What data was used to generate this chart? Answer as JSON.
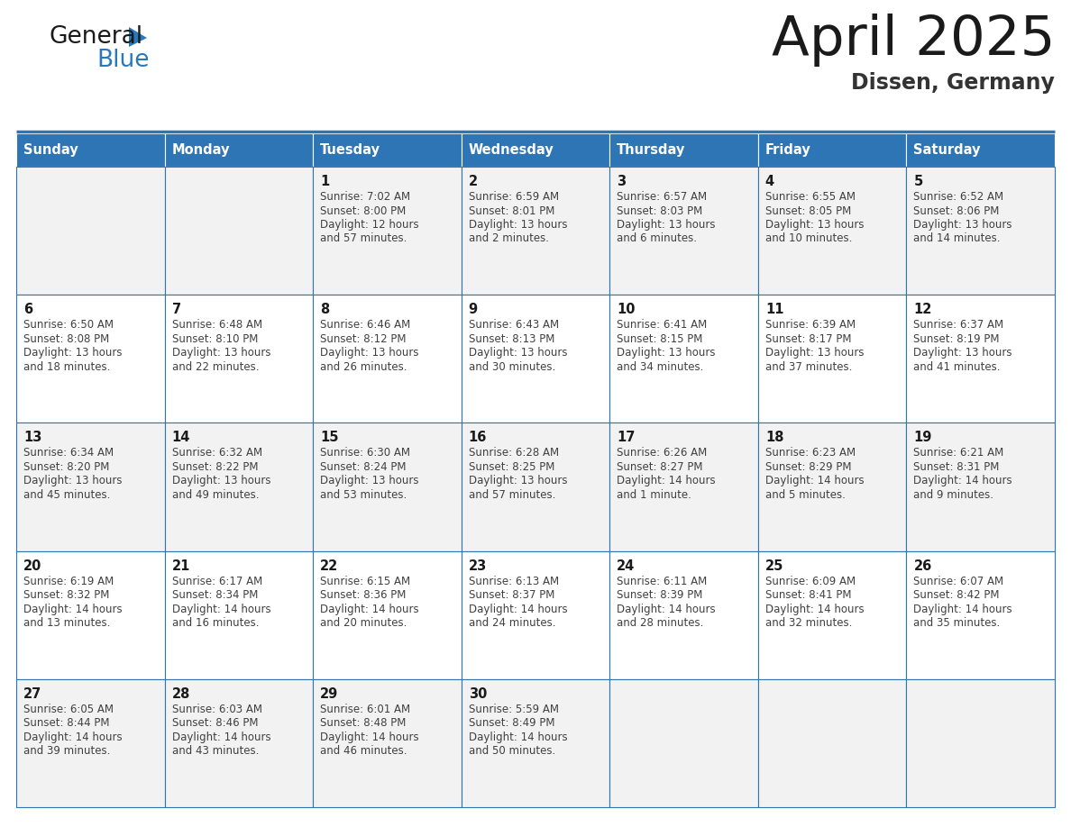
{
  "title": "April 2025",
  "subtitle": "Dissen, Germany",
  "header_bg_color": "#2e75b6",
  "header_text_color": "#ffffff",
  "cell_bg_even": "#f2f2f2",
  "cell_bg_odd": "#ffffff",
  "cell_border_color": "#2e75b6",
  "day_headers": [
    "Sunday",
    "Monday",
    "Tuesday",
    "Wednesday",
    "Thursday",
    "Friday",
    "Saturday"
  ],
  "title_color": "#1a1a1a",
  "subtitle_color": "#333333",
  "day_num_color": "#1a1a1a",
  "cell_text_color": "#404040",
  "weeks": [
    [
      {
        "day": "",
        "lines": []
      },
      {
        "day": "",
        "lines": []
      },
      {
        "day": "1",
        "lines": [
          "Sunrise: 7:02 AM",
          "Sunset: 8:00 PM",
          "Daylight: 12 hours",
          "and 57 minutes."
        ]
      },
      {
        "day": "2",
        "lines": [
          "Sunrise: 6:59 AM",
          "Sunset: 8:01 PM",
          "Daylight: 13 hours",
          "and 2 minutes."
        ]
      },
      {
        "day": "3",
        "lines": [
          "Sunrise: 6:57 AM",
          "Sunset: 8:03 PM",
          "Daylight: 13 hours",
          "and 6 minutes."
        ]
      },
      {
        "day": "4",
        "lines": [
          "Sunrise: 6:55 AM",
          "Sunset: 8:05 PM",
          "Daylight: 13 hours",
          "and 10 minutes."
        ]
      },
      {
        "day": "5",
        "lines": [
          "Sunrise: 6:52 AM",
          "Sunset: 8:06 PM",
          "Daylight: 13 hours",
          "and 14 minutes."
        ]
      }
    ],
    [
      {
        "day": "6",
        "lines": [
          "Sunrise: 6:50 AM",
          "Sunset: 8:08 PM",
          "Daylight: 13 hours",
          "and 18 minutes."
        ]
      },
      {
        "day": "7",
        "lines": [
          "Sunrise: 6:48 AM",
          "Sunset: 8:10 PM",
          "Daylight: 13 hours",
          "and 22 minutes."
        ]
      },
      {
        "day": "8",
        "lines": [
          "Sunrise: 6:46 AM",
          "Sunset: 8:12 PM",
          "Daylight: 13 hours",
          "and 26 minutes."
        ]
      },
      {
        "day": "9",
        "lines": [
          "Sunrise: 6:43 AM",
          "Sunset: 8:13 PM",
          "Daylight: 13 hours",
          "and 30 minutes."
        ]
      },
      {
        "day": "10",
        "lines": [
          "Sunrise: 6:41 AM",
          "Sunset: 8:15 PM",
          "Daylight: 13 hours",
          "and 34 minutes."
        ]
      },
      {
        "day": "11",
        "lines": [
          "Sunrise: 6:39 AM",
          "Sunset: 8:17 PM",
          "Daylight: 13 hours",
          "and 37 minutes."
        ]
      },
      {
        "day": "12",
        "lines": [
          "Sunrise: 6:37 AM",
          "Sunset: 8:19 PM",
          "Daylight: 13 hours",
          "and 41 minutes."
        ]
      }
    ],
    [
      {
        "day": "13",
        "lines": [
          "Sunrise: 6:34 AM",
          "Sunset: 8:20 PM",
          "Daylight: 13 hours",
          "and 45 minutes."
        ]
      },
      {
        "day": "14",
        "lines": [
          "Sunrise: 6:32 AM",
          "Sunset: 8:22 PM",
          "Daylight: 13 hours",
          "and 49 minutes."
        ]
      },
      {
        "day": "15",
        "lines": [
          "Sunrise: 6:30 AM",
          "Sunset: 8:24 PM",
          "Daylight: 13 hours",
          "and 53 minutes."
        ]
      },
      {
        "day": "16",
        "lines": [
          "Sunrise: 6:28 AM",
          "Sunset: 8:25 PM",
          "Daylight: 13 hours",
          "and 57 minutes."
        ]
      },
      {
        "day": "17",
        "lines": [
          "Sunrise: 6:26 AM",
          "Sunset: 8:27 PM",
          "Daylight: 14 hours",
          "and 1 minute."
        ]
      },
      {
        "day": "18",
        "lines": [
          "Sunrise: 6:23 AM",
          "Sunset: 8:29 PM",
          "Daylight: 14 hours",
          "and 5 minutes."
        ]
      },
      {
        "day": "19",
        "lines": [
          "Sunrise: 6:21 AM",
          "Sunset: 8:31 PM",
          "Daylight: 14 hours",
          "and 9 minutes."
        ]
      }
    ],
    [
      {
        "day": "20",
        "lines": [
          "Sunrise: 6:19 AM",
          "Sunset: 8:32 PM",
          "Daylight: 14 hours",
          "and 13 minutes."
        ]
      },
      {
        "day": "21",
        "lines": [
          "Sunrise: 6:17 AM",
          "Sunset: 8:34 PM",
          "Daylight: 14 hours",
          "and 16 minutes."
        ]
      },
      {
        "day": "22",
        "lines": [
          "Sunrise: 6:15 AM",
          "Sunset: 8:36 PM",
          "Daylight: 14 hours",
          "and 20 minutes."
        ]
      },
      {
        "day": "23",
        "lines": [
          "Sunrise: 6:13 AM",
          "Sunset: 8:37 PM",
          "Daylight: 14 hours",
          "and 24 minutes."
        ]
      },
      {
        "day": "24",
        "lines": [
          "Sunrise: 6:11 AM",
          "Sunset: 8:39 PM",
          "Daylight: 14 hours",
          "and 28 minutes."
        ]
      },
      {
        "day": "25",
        "lines": [
          "Sunrise: 6:09 AM",
          "Sunset: 8:41 PM",
          "Daylight: 14 hours",
          "and 32 minutes."
        ]
      },
      {
        "day": "26",
        "lines": [
          "Sunrise: 6:07 AM",
          "Sunset: 8:42 PM",
          "Daylight: 14 hours",
          "and 35 minutes."
        ]
      }
    ],
    [
      {
        "day": "27",
        "lines": [
          "Sunrise: 6:05 AM",
          "Sunset: 8:44 PM",
          "Daylight: 14 hours",
          "and 39 minutes."
        ]
      },
      {
        "day": "28",
        "lines": [
          "Sunrise: 6:03 AM",
          "Sunset: 8:46 PM",
          "Daylight: 14 hours",
          "and 43 minutes."
        ]
      },
      {
        "day": "29",
        "lines": [
          "Sunrise: 6:01 AM",
          "Sunset: 8:48 PM",
          "Daylight: 14 hours",
          "and 46 minutes."
        ]
      },
      {
        "day": "30",
        "lines": [
          "Sunrise: 5:59 AM",
          "Sunset: 8:49 PM",
          "Daylight: 14 hours",
          "and 50 minutes."
        ]
      },
      {
        "day": "",
        "lines": []
      },
      {
        "day": "",
        "lines": []
      },
      {
        "day": "",
        "lines": []
      }
    ]
  ]
}
